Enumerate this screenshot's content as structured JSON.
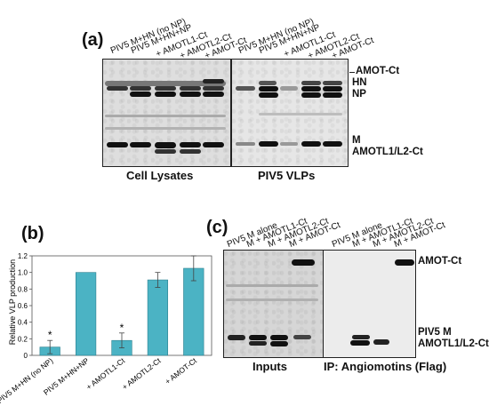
{
  "panel_a": {
    "letter": "(a)",
    "lysate_lanes": [
      "PIV5 M+HN (no NP)",
      "PIV5 M+HN+NP",
      "+ AMOTL1-Ct",
      "+ AMOTL2-Ct",
      "+ AMOT-Ct"
    ],
    "vlp_lanes": [
      "PIV5 M+HN (no NP)",
      "PIV5 M+HN+NP",
      "+ AMOTL1-Ct",
      "+ AMOTL2-Ct",
      "+ AMOT-Ct"
    ],
    "lysate_caption": "Cell Lysates",
    "vlp_caption": "PIV5 VLPs",
    "markers": {
      "amot_ct": "AMOT-Ct",
      "hn": "HN",
      "np": "NP",
      "m": "M",
      "amotl": "AMOTL1/L2-Ct"
    }
  },
  "panel_b": {
    "letter": "(b)",
    "star": "*",
    "chart_data": {
      "type": "bar",
      "categories": [
        "PIV5 M+HN (no NP)",
        "PIV5 M+HN+NP",
        "+ AMOTL1-Ct",
        "+ AMOTL2-Ct",
        "+ AMOT-Ct"
      ],
      "values": [
        0.1,
        1.0,
        0.18,
        0.91,
        1.05
      ],
      "errors": [
        0.08,
        0.0,
        0.09,
        0.09,
        0.15
      ],
      "significant": [
        true,
        false,
        true,
        false,
        false
      ],
      "ylabel": "Relative VLP production",
      "ylim": [
        0,
        1.2
      ],
      "yticks": [
        "0",
        "0.2",
        "0.4",
        "0.6",
        "0.8",
        "1.0",
        "1.2"
      ],
      "bar_color": "#4bb3c4",
      "grid": false
    }
  },
  "panel_c": {
    "letter": "(c)",
    "input_lanes": [
      "PIV5 M alone",
      "M + AMOTL1-Ct",
      "M + AMOTL2-Ct",
      "M + AMOT-Ct"
    ],
    "ip_lanes": [
      "PIV5 M alone",
      "M + AMOTL1-Ct",
      "M + AMOTL2-Ct",
      "M + AMOT-Ct"
    ],
    "inputs_caption": "Inputs",
    "ip_caption": "IP:  Angiomotins (Flag)",
    "markers": {
      "amot_ct": "AMOT-Ct",
      "piv5_m": "PIV5 M",
      "amotl": "AMOTL1/L2-Ct"
    }
  }
}
